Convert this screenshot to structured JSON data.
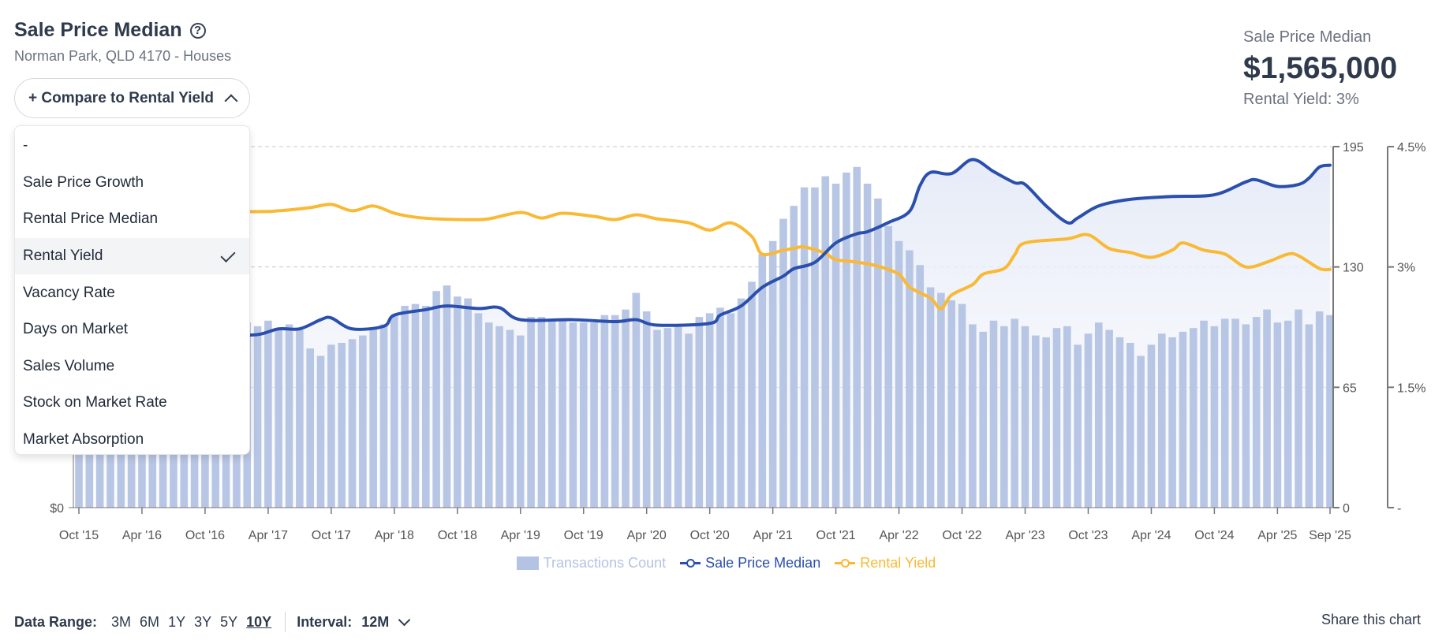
{
  "header": {
    "title": "Sale Price Median",
    "help_icon": "question-circle-icon",
    "subtitle": "Norman Park, QLD 4170 - Houses"
  },
  "compare_button": {
    "label": "+ Compare to Rental Yield",
    "icon": "chevron-up-icon"
  },
  "dropdown": {
    "items": [
      {
        "label": "-",
        "selected": false
      },
      {
        "label": "Sale Price Growth",
        "selected": false
      },
      {
        "label": "Rental Price Median",
        "selected": false
      },
      {
        "label": "Rental Yield",
        "selected": true
      },
      {
        "label": "Vacancy Rate",
        "selected": false
      },
      {
        "label": "Days on Market",
        "selected": false
      },
      {
        "label": "Sales Volume",
        "selected": false
      },
      {
        "label": "Stock on Market Rate",
        "selected": false
      },
      {
        "label": "Market Absorption",
        "selected": false
      }
    ]
  },
  "kpi": {
    "label": "Sale Price Median",
    "value": "$1,565,000",
    "sub": "Rental Yield: 3%"
  },
  "footer": {
    "data_range_label": "Data Range:",
    "ranges": [
      "3M",
      "6M",
      "1Y",
      "3Y",
      "5Y",
      "10Y"
    ],
    "active_range": "10Y",
    "interval_label": "Interval:",
    "interval_value": "12M",
    "share": "Share this chart"
  },
  "colors": {
    "bars": "#b4c3e4",
    "sale_price": "#2a4fad",
    "rental_yield": "#f9b935",
    "area": "#e8edf8"
  },
  "chart_data": {
    "type": "bar+line",
    "x_tick_labels": [
      "Oct '15",
      "Apr '16",
      "Oct '16",
      "Apr '17",
      "Oct '17",
      "Apr '18",
      "Oct '18",
      "Apr '19",
      "Oct '19",
      "Apr '20",
      "Oct '20",
      "Apr '21",
      "Oct '21",
      "Apr '22",
      "Oct '22",
      "Apr '23",
      "Oct '23",
      "Apr '24",
      "Oct '24",
      "Apr '25",
      "Sep '25"
    ],
    "x_tick_dates": [
      "2015-10",
      "2016-04",
      "2016-10",
      "2017-04",
      "2017-10",
      "2018-04",
      "2018-10",
      "2019-04",
      "2019-10",
      "2020-04",
      "2020-10",
      "2021-04",
      "2021-10",
      "2022-04",
      "2022-10",
      "2023-04",
      "2023-10",
      "2024-04",
      "2024-10",
      "2025-04",
      "2025-09"
    ],
    "left_axis": {
      "tick_labels": [
        "$0"
      ],
      "ylim": [
        0,
        1650000
      ]
    },
    "right_axis_count": {
      "tick_labels": [
        "195",
        "130",
        "65",
        "0"
      ],
      "ylim": [
        0,
        195
      ]
    },
    "right_axis_yield": {
      "tick_labels": [
        "4.5%",
        "3%",
        "1.5%",
        "-"
      ],
      "ylim": [
        0,
        4.5
      ]
    },
    "grid": true,
    "legend": {
      "placement": "bottom",
      "entries": [
        "Transactions Count",
        "Sale Price Median",
        "Rental Yield"
      ]
    },
    "bars": {
      "name": "Transactions Count",
      "categories": [
        "2015-10",
        "2015-11",
        "2015-12",
        "2016-01",
        "2016-02",
        "2016-03",
        "2016-04",
        "2016-05",
        "2016-06",
        "2016-07",
        "2016-08",
        "2016-09",
        "2016-10",
        "2016-11",
        "2016-12",
        "2017-01",
        "2017-02",
        "2017-03",
        "2017-04",
        "2017-05",
        "2017-06",
        "2017-07",
        "2017-08",
        "2017-09",
        "2017-10",
        "2017-11",
        "2017-12",
        "2018-01",
        "2018-02",
        "2018-03",
        "2018-04",
        "2018-05",
        "2018-06",
        "2018-07",
        "2018-08",
        "2018-09",
        "2018-10",
        "2018-11",
        "2018-12",
        "2019-01",
        "2019-02",
        "2019-03",
        "2019-04",
        "2019-05",
        "2019-06",
        "2019-07",
        "2019-08",
        "2019-09",
        "2019-10",
        "2019-11",
        "2019-12",
        "2020-01",
        "2020-02",
        "2020-03",
        "2020-04",
        "2020-05",
        "2020-06",
        "2020-07",
        "2020-08",
        "2020-09",
        "2020-10",
        "2020-11",
        "2020-12",
        "2021-01",
        "2021-02",
        "2021-03",
        "2021-04",
        "2021-05",
        "2021-06",
        "2021-07",
        "2021-08",
        "2021-09",
        "2021-10",
        "2021-11",
        "2021-12",
        "2022-01",
        "2022-02",
        "2022-03",
        "2022-04",
        "2022-05",
        "2022-06",
        "2022-07",
        "2022-08",
        "2022-09",
        "2022-10",
        "2022-11",
        "2022-12",
        "2023-01",
        "2023-02",
        "2023-03",
        "2023-04",
        "2023-05",
        "2023-06",
        "2023-07",
        "2023-08",
        "2023-09",
        "2023-10",
        "2023-11",
        "2023-12",
        "2024-01",
        "2024-02",
        "2024-03",
        "2024-04",
        "2024-05",
        "2024-06",
        "2024-07",
        "2024-08",
        "2024-09",
        "2024-10",
        "2024-11",
        "2024-12",
        "2025-01",
        "2025-02",
        "2025-03",
        "2025-04",
        "2025-05",
        "2025-06",
        "2025-07",
        "2025-08",
        "2025-09"
      ],
      "values": [
        92,
        95,
        90,
        97,
        99,
        94,
        101,
        96,
        98,
        93,
        100,
        97,
        95,
        99,
        102,
        96,
        100,
        98,
        101,
        96,
        99,
        96,
        86,
        82,
        88,
        89,
        91,
        93,
        97,
        99,
        104,
        109,
        110,
        109,
        117,
        120,
        114,
        113,
        105,
        100,
        98,
        96,
        93,
        103,
        103,
        102,
        102,
        100,
        100,
        100,
        104,
        104,
        107,
        116,
        106,
        96,
        97,
        98,
        94,
        103,
        105,
        108,
        105,
        113,
        122,
        137,
        144,
        156,
        163,
        173,
        173,
        179,
        175,
        181,
        184,
        175,
        167,
        152,
        144,
        139,
        131,
        119,
        116,
        112,
        110,
        99,
        95,
        101,
        98,
        102,
        98,
        93,
        92,
        97,
        98,
        88,
        94,
        100,
        96,
        92,
        89,
        82,
        88,
        94,
        92,
        95,
        97,
        101,
        98,
        102,
        102,
        99,
        103,
        107,
        100,
        101,
        107,
        99,
        106,
        104
      ]
    },
    "series": [
      {
        "name": "Sale Price Median",
        "axis": "left",
        "points": [
          [
            "2015-10",
            753000
          ],
          [
            "2016-03",
            766000
          ],
          [
            "2016-08",
            778000
          ],
          [
            "2016-12",
            787000
          ],
          [
            "2017-03",
            791000
          ],
          [
            "2017-05",
            817000
          ],
          [
            "2017-07",
            817000
          ],
          [
            "2017-09",
            859000
          ],
          [
            "2017-10",
            867000
          ],
          [
            "2017-12",
            817000
          ],
          [
            "2018-03",
            829000
          ],
          [
            "2018-04",
            880000
          ],
          [
            "2018-07",
            905000
          ],
          [
            "2018-09",
            922000
          ],
          [
            "2018-12",
            910000
          ],
          [
            "2019-02",
            914000
          ],
          [
            "2019-04",
            859000
          ],
          [
            "2019-09",
            859000
          ],
          [
            "2020-01",
            850000
          ],
          [
            "2020-03",
            859000
          ],
          [
            "2020-05",
            834000
          ],
          [
            "2020-10",
            842000
          ],
          [
            "2020-11",
            880000
          ],
          [
            "2021-01",
            922000
          ],
          [
            "2021-03",
            1007000
          ],
          [
            "2021-05",
            1058000
          ],
          [
            "2021-06",
            1092000
          ],
          [
            "2021-08",
            1121000
          ],
          [
            "2021-10",
            1210000
          ],
          [
            "2021-12",
            1252000
          ],
          [
            "2022-01",
            1261000
          ],
          [
            "2022-03",
            1303000
          ],
          [
            "2022-05",
            1354000
          ],
          [
            "2022-06",
            1472000
          ],
          [
            "2022-07",
            1532000
          ],
          [
            "2022-09",
            1527000
          ],
          [
            "2022-11",
            1591000
          ],
          [
            "2023-01",
            1536000
          ],
          [
            "2023-03",
            1485000
          ],
          [
            "2023-04",
            1477000
          ],
          [
            "2023-06",
            1379000
          ],
          [
            "2023-08",
            1303000
          ],
          [
            "2023-09",
            1324000
          ],
          [
            "2023-11",
            1379000
          ],
          [
            "2024-02",
            1409000
          ],
          [
            "2024-06",
            1422000
          ],
          [
            "2024-10",
            1430000
          ],
          [
            "2025-01",
            1489000
          ],
          [
            "2025-02",
            1498000
          ],
          [
            "2025-04",
            1468000
          ],
          [
            "2025-06",
            1477000
          ],
          [
            "2025-07",
            1506000
          ],
          [
            "2025-08",
            1557000
          ],
          [
            "2025-09",
            1565000
          ]
        ]
      },
      {
        "name": "Rental Yield",
        "axis": "right",
        "unit": "%",
        "points": [
          [
            "2015-10",
            3.69
          ],
          [
            "2017-02",
            3.69
          ],
          [
            "2017-05",
            3.7
          ],
          [
            "2017-08",
            3.74
          ],
          [
            "2017-10",
            3.78
          ],
          [
            "2017-12",
            3.7
          ],
          [
            "2018-02",
            3.76
          ],
          [
            "2018-04",
            3.67
          ],
          [
            "2018-06",
            3.62
          ],
          [
            "2018-08",
            3.6
          ],
          [
            "2018-11",
            3.59
          ],
          [
            "2019-01",
            3.6
          ],
          [
            "2019-04",
            3.68
          ],
          [
            "2019-06",
            3.61
          ],
          [
            "2019-08",
            3.67
          ],
          [
            "2019-11",
            3.63
          ],
          [
            "2020-01",
            3.59
          ],
          [
            "2020-03",
            3.65
          ],
          [
            "2020-05",
            3.6
          ],
          [
            "2020-08",
            3.55
          ],
          [
            "2020-10",
            3.46
          ],
          [
            "2020-12",
            3.55
          ],
          [
            "2021-02",
            3.38
          ],
          [
            "2021-03",
            3.16
          ],
          [
            "2021-05",
            3.21
          ],
          [
            "2021-06",
            3.23
          ],
          [
            "2021-07",
            3.25
          ],
          [
            "2021-09",
            3.17
          ],
          [
            "2021-10",
            3.09
          ],
          [
            "2021-12",
            3.06
          ],
          [
            "2022-02",
            3.01
          ],
          [
            "2022-04",
            2.91
          ],
          [
            "2022-05",
            2.75
          ],
          [
            "2022-07",
            2.61
          ],
          [
            "2022-08",
            2.48
          ],
          [
            "2022-09",
            2.65
          ],
          [
            "2022-11",
            2.78
          ],
          [
            "2022-12",
            2.91
          ],
          [
            "2023-02",
            2.98
          ],
          [
            "2023-03",
            3.15
          ],
          [
            "2023-04",
            3.3
          ],
          [
            "2023-08",
            3.35
          ],
          [
            "2023-10",
            3.4
          ],
          [
            "2023-12",
            3.23
          ],
          [
            "2024-02",
            3.18
          ],
          [
            "2024-04",
            3.12
          ],
          [
            "2024-06",
            3.21
          ],
          [
            "2024-07",
            3.3
          ],
          [
            "2024-09",
            3.21
          ],
          [
            "2024-11",
            3.16
          ],
          [
            "2025-01",
            3.0
          ],
          [
            "2025-03",
            3.06
          ],
          [
            "2025-05",
            3.16
          ],
          [
            "2025-06",
            3.14
          ],
          [
            "2025-08",
            2.98
          ],
          [
            "2025-09",
            2.97
          ]
        ]
      }
    ]
  }
}
